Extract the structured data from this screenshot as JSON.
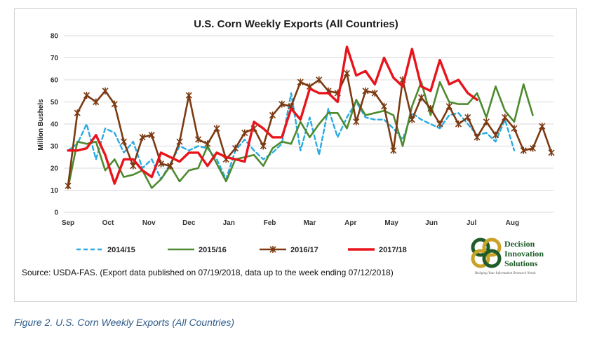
{
  "caption": "Figure 2. U.S. Corn Weekly Exports (All Countries)",
  "source_note": "Source: USDA-FAS. (Export data published  on 07/19/2018, data up to the week ending 07/12/2018)",
  "logo": {
    "line1": "Decision",
    "line2": "Innovation",
    "line3": "Solutions",
    "tagline": "Bridging Your Information Research Needs"
  },
  "chart_data": {
    "type": "line",
    "title": "U.S. Corn Weekly Exports (All Countries)",
    "ylabel": "Million Bushels",
    "xlabel": "",
    "ylim": [
      0,
      80
    ],
    "yticks": [
      0,
      10,
      20,
      30,
      40,
      50,
      60,
      70,
      80
    ],
    "month_labels": [
      "Sep",
      "Oct",
      "Nov",
      "Dec",
      "Jan",
      "Feb",
      "Mar",
      "Apr",
      "May",
      "Jun",
      "Jul",
      "Aug"
    ],
    "grid": true,
    "legend_position": "bottom",
    "series": [
      {
        "name": "2014/15",
        "color": "#29abe2",
        "style": "dashed",
        "values": [
          28,
          31,
          40,
          24,
          38,
          36,
          27,
          32,
          20,
          24,
          15,
          22,
          30,
          28,
          30,
          29,
          24,
          15,
          28,
          33,
          28,
          24,
          27,
          31,
          54,
          28,
          43,
          26,
          47,
          34,
          43,
          50,
          43,
          42,
          42,
          38,
          33,
          45,
          42,
          40,
          38,
          44,
          45,
          40,
          35,
          36,
          32,
          42,
          28
        ]
      },
      {
        "name": "2015/16",
        "color": "#4e8a2f",
        "style": "solid",
        "values": [
          11,
          32,
          31,
          32,
          19,
          24,
          16,
          17,
          19,
          11,
          15,
          21,
          14,
          19,
          20,
          30,
          22,
          14,
          24,
          25,
          26,
          21,
          29,
          32,
          31,
          41,
          34,
          40,
          45,
          45,
          38,
          51,
          44,
          45,
          46,
          44,
          30,
          48,
          59,
          44,
          59,
          50,
          49,
          49,
          54,
          43,
          57,
          46,
          41,
          58,
          44
        ]
      },
      {
        "name": "2016/17",
        "color": "#7b3a12",
        "style": "cross",
        "values": [
          12,
          45,
          53,
          50,
          55,
          49,
          32,
          21,
          34,
          35,
          22,
          21,
          32,
          53,
          33,
          31,
          38,
          24,
          29,
          36,
          38,
          30,
          44,
          49,
          48,
          59,
          57,
          60,
          55,
          54,
          63,
          41,
          55,
          54,
          48,
          28,
          60,
          42,
          52,
          47,
          40,
          48,
          40,
          43,
          34,
          41,
          35,
          43,
          38,
          28,
          29,
          39,
          27
        ]
      },
      {
        "name": "2017/18",
        "color": "#e8131b",
        "style": "solid-thick",
        "values": [
          28,
          28,
          29,
          35,
          26,
          13,
          24,
          24,
          19,
          16,
          27,
          25,
          23,
          27,
          27,
          21,
          27,
          25,
          24,
          23,
          41,
          38,
          34,
          34,
          47,
          42,
          56,
          54,
          54,
          50,
          75,
          62,
          64,
          58,
          70,
          61,
          57,
          74,
          57,
          55,
          69,
          58,
          60,
          54,
          51
        ]
      }
    ]
  }
}
